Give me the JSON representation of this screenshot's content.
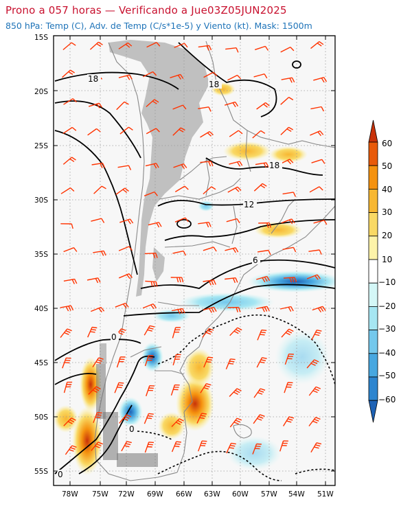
{
  "header": {
    "title": "Prono a 057 horas — Verificando a Jue03Z05JUN2025",
    "subtitle": "850 hPa: Temp (C), Adv. de Temp (C/s*1e-5) y Viento (kt). Mask: 1500m"
  },
  "map": {
    "lat_labels": [
      "15S",
      "20S",
      "25S",
      "30S",
      "35S",
      "40S",
      "45S",
      "50S",
      "55S"
    ],
    "lon_labels": [
      "78W",
      "75W",
      "72W",
      "69W",
      "66W",
      "63W",
      "60W",
      "57W",
      "54W",
      "51W"
    ],
    "contour_labels": [
      "18",
      "18",
      "18",
      "12",
      "6",
      "0",
      "0",
      "0"
    ],
    "colors": {
      "barb": "#ff3300",
      "mask": "#c0c0c0",
      "grid": "#999999",
      "border": "#888888"
    }
  },
  "colorbar": {
    "labels": [
      "60",
      "50",
      "40",
      "30",
      "20",
      "10",
      "−10",
      "−20",
      "−30",
      "−40",
      "−50",
      "−60"
    ],
    "colors": [
      "#c8320a",
      "#e85a0a",
      "#f5920f",
      "#f7b732",
      "#f9d965",
      "#fdf3a9",
      "#ffffff",
      "#d4f7f7",
      "#a6e6f2",
      "#74c8ec",
      "#47a7e0",
      "#2d85cf",
      "#1e62b5"
    ]
  }
}
